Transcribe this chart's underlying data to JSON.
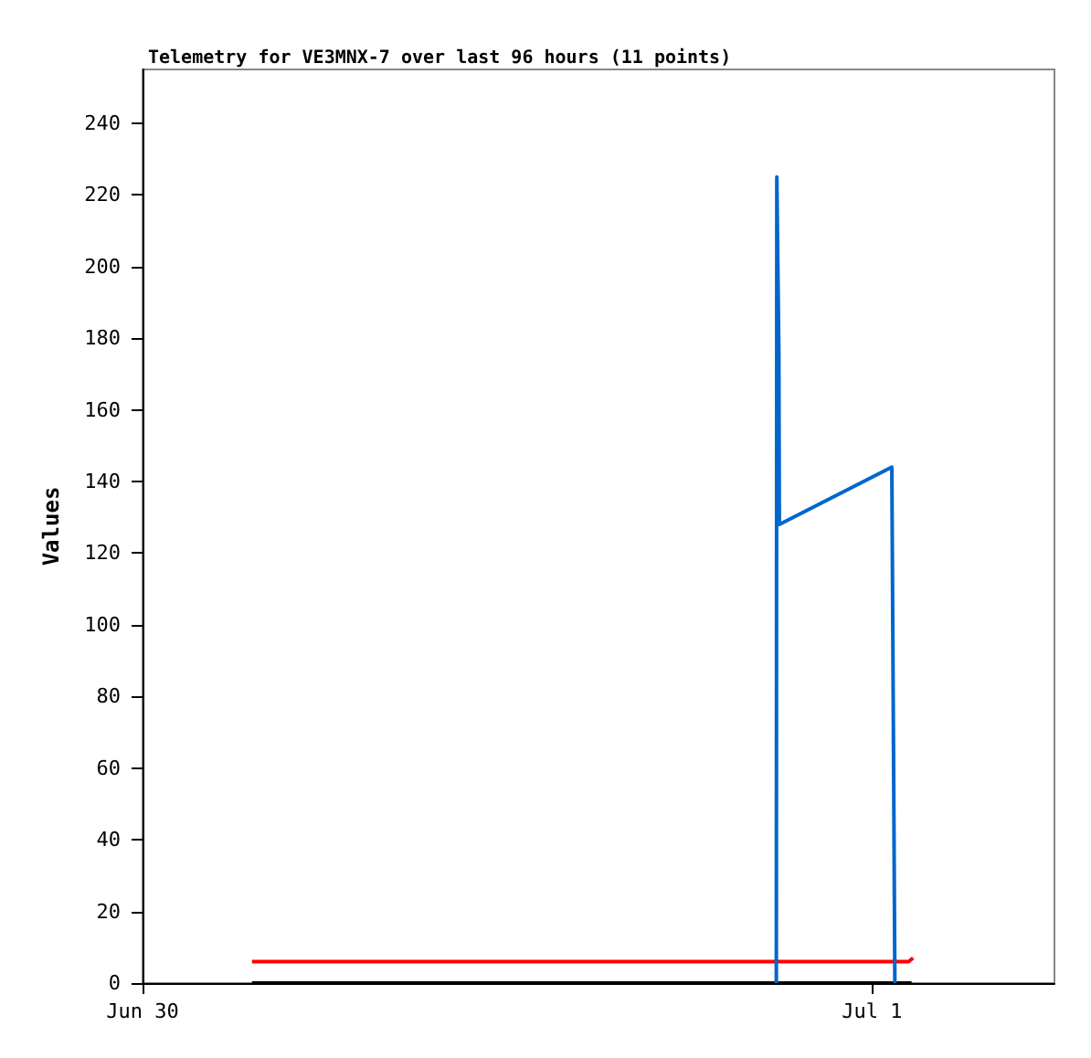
{
  "chart_data": {
    "type": "line",
    "title": "Telemetry for VE3MNX-7 over last 96 hours (11 points)",
    "ylabel": "Values",
    "xlim": [
      "--06-30T00:00",
      "--07-01T06:00"
    ],
    "xticks": [
      {
        "value": "--06-30",
        "label": "Jun 30"
      },
      {
        "value": "--07-01",
        "label": "Jul 1"
      }
    ],
    "ylim": [
      0,
      255
    ],
    "yticks": [
      0,
      20,
      40,
      60,
      80,
      100,
      120,
      140,
      160,
      180,
      200,
      220,
      240
    ],
    "grid": false,
    "series": [
      {
        "color": "#000000",
        "x": [
          "--06-30T03:36",
          "--07-01T01:18"
        ],
        "values": [
          0,
          0
        ]
      },
      {
        "color": "#ff0000",
        "x": [
          "--06-30T03:36",
          "--07-01T01:12",
          "--07-01T01:21"
        ],
        "values": [
          6,
          6,
          7
        ]
      },
      {
        "color": "#0066cc",
        "x": [
          "--06-30T20:51",
          "--06-30T20:52",
          "--06-30T20:56",
          "--06-30T20:57",
          "--07-01T00:39",
          "--07-01T00:41",
          "--07-01T00:42",
          "--07-01T00:45"
        ],
        "values": [
          0,
          225,
          176,
          128,
          144,
          144,
          73,
          0
        ]
      }
    ]
  }
}
